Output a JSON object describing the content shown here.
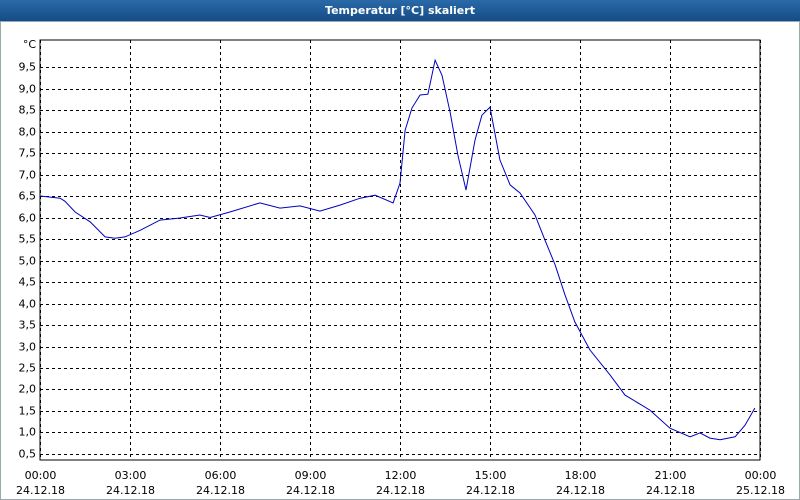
{
  "chart_data": {
    "type": "line",
    "title": "Temperatur [°C] skaliert",
    "ylabel": "°C",
    "x": [
      0,
      0.67,
      0.83,
      1.17,
      1.67,
      2.17,
      2.5,
      2.83,
      3.33,
      4.0,
      4.67,
      5.33,
      5.67,
      6.33,
      7.33,
      8.0,
      8.67,
      9.33,
      10.0,
      10.67,
      11.17,
      11.77,
      12.0,
      12.17,
      12.4,
      12.67,
      12.93,
      13.17,
      13.4,
      13.67,
      13.93,
      14.2,
      14.5,
      14.73,
      15.0,
      15.33,
      15.67,
      16.0,
      16.5,
      16.83,
      17.17,
      17.5,
      17.83,
      18.33,
      19.0,
      19.5,
      20.33,
      21.0,
      21.67,
      22.0,
      22.33,
      22.67,
      23.17,
      23.5,
      23.83
    ],
    "series": [
      {
        "name": "Temperatur",
        "color": "#0000c0",
        "values": [
          6.5,
          6.45,
          6.38,
          6.13,
          5.9,
          5.55,
          5.52,
          5.55,
          5.7,
          5.94,
          5.99,
          6.06,
          6.0,
          6.13,
          6.34,
          6.22,
          6.27,
          6.15,
          6.29,
          6.45,
          6.52,
          6.34,
          6.8,
          8.03,
          8.55,
          8.85,
          8.87,
          9.66,
          9.31,
          8.45,
          7.45,
          6.64,
          7.8,
          8.38,
          8.57,
          7.34,
          6.76,
          6.57,
          6.06,
          5.48,
          4.9,
          4.2,
          3.57,
          2.92,
          2.34,
          1.87,
          1.52,
          1.1,
          0.9,
          0.99,
          0.87,
          0.83,
          0.9,
          1.17,
          1.57
        ]
      }
    ],
    "xlim": [
      0,
      24
    ],
    "xticks": [
      {
        "value": 0,
        "label": "00:00"
      },
      {
        "value": 3,
        "label": "03:00"
      },
      {
        "value": 6,
        "label": "06:00"
      },
      {
        "value": 9,
        "label": "09:00"
      },
      {
        "value": 12,
        "label": "12:00"
      },
      {
        "value": 15,
        "label": "15:00"
      },
      {
        "value": 18,
        "label": "18:00"
      },
      {
        "value": 21,
        "label": "21:00"
      },
      {
        "value": 24,
        "label": "00:00"
      }
    ],
    "xtick_dates": [
      "24.12.18",
      "24.12.18",
      "24.12.18",
      "24.12.18",
      "24.12.18",
      "24.12.18",
      "24.12.18",
      "24.12.18",
      "25.12.18"
    ],
    "ylim": [
      0.36,
      10.13
    ],
    "yticks": [
      {
        "value": 0.5,
        "label": "0,5"
      },
      {
        "value": 1.0,
        "label": "1,0"
      },
      {
        "value": 1.5,
        "label": "1,5"
      },
      {
        "value": 2.0,
        "label": "2,0"
      },
      {
        "value": 2.5,
        "label": "2,5"
      },
      {
        "value": 3.0,
        "label": "3,0"
      },
      {
        "value": 3.5,
        "label": "3,5"
      },
      {
        "value": 4.0,
        "label": "4,0"
      },
      {
        "value": 4.5,
        "label": "4,5"
      },
      {
        "value": 5.0,
        "label": "5,0"
      },
      {
        "value": 5.5,
        "label": "5,5"
      },
      {
        "value": 6.0,
        "label": "6,0"
      },
      {
        "value": 6.5,
        "label": "6,5"
      },
      {
        "value": 7.0,
        "label": "7,0"
      },
      {
        "value": 7.5,
        "label": "7,5"
      },
      {
        "value": 8.0,
        "label": "8,0"
      },
      {
        "value": 8.5,
        "label": "8,5"
      },
      {
        "value": 9.0,
        "label": "9,0"
      },
      {
        "value": 9.5,
        "label": "9,5"
      }
    ],
    "grid": true
  }
}
